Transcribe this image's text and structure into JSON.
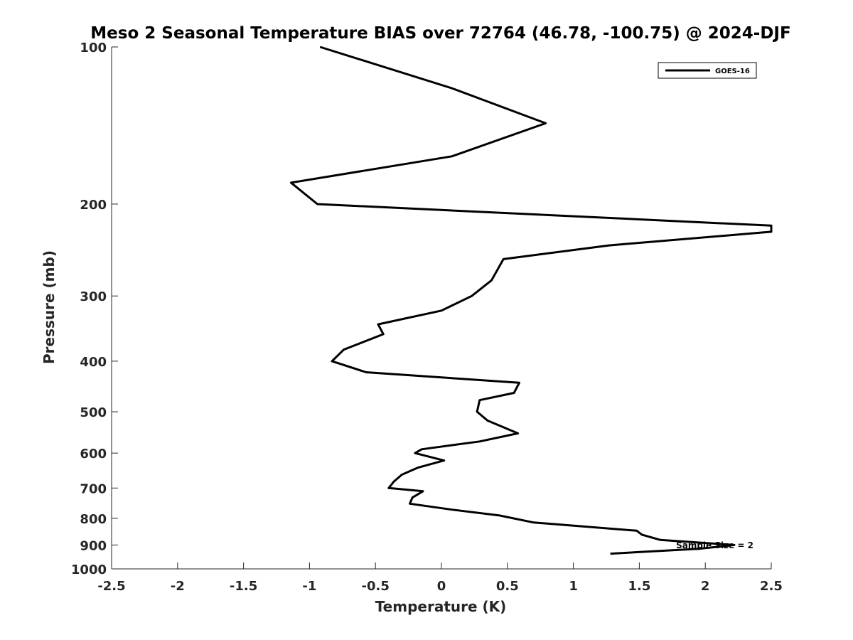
{
  "chart_data": {
    "type": "line",
    "title": "Meso 2 Seasonal Temperature BIAS over 72764 (46.78, -100.75) @ 2024-DJF",
    "xlabel": "Temperature (K)",
    "ylabel": "Pressure (mb)",
    "xlim": [
      -2.5,
      2.5
    ],
    "ylim": [
      100,
      1000
    ],
    "y_scale": "log",
    "y_reversed": true,
    "grid": false,
    "legend_position": "top-right",
    "x_ticks": [
      "-2.5",
      "-2",
      "-1.5",
      "-1",
      "-0.5",
      "0",
      "0.5",
      "1",
      "1.5",
      "2",
      "2.5"
    ],
    "y_ticks": [
      "100",
      "200",
      "300",
      "400",
      "500",
      "600",
      "700",
      "800",
      "900",
      "1000"
    ],
    "annotation": "Sample Size = 2",
    "series": [
      {
        "name": "GOES-16",
        "color": "#000000",
        "points": [
          {
            "x": -0.92,
            "y": 100
          },
          {
            "x": 0.08,
            "y": 120
          },
          {
            "x": 0.79,
            "y": 140
          },
          {
            "x": 0.08,
            "y": 162
          },
          {
            "x": -1.14,
            "y": 182
          },
          {
            "x": -0.94,
            "y": 200
          },
          {
            "x": 2.5,
            "y": 220
          },
          {
            "x": 2.5,
            "y": 226
          },
          {
            "x": 1.27,
            "y": 240
          },
          {
            "x": 0.47,
            "y": 255
          },
          {
            "x": 0.38,
            "y": 280
          },
          {
            "x": 0.23,
            "y": 300
          },
          {
            "x": 0.0,
            "y": 320
          },
          {
            "x": -0.48,
            "y": 340
          },
          {
            "x": -0.44,
            "y": 355
          },
          {
            "x": -0.74,
            "y": 380
          },
          {
            "x": -0.83,
            "y": 400
          },
          {
            "x": -0.57,
            "y": 420
          },
          {
            "x": 0.59,
            "y": 440
          },
          {
            "x": 0.55,
            "y": 460
          },
          {
            "x": 0.29,
            "y": 475
          },
          {
            "x": 0.27,
            "y": 500
          },
          {
            "x": 0.35,
            "y": 520
          },
          {
            "x": 0.58,
            "y": 550
          },
          {
            "x": 0.29,
            "y": 570
          },
          {
            "x": -0.15,
            "y": 590
          },
          {
            "x": -0.2,
            "y": 600
          },
          {
            "x": 0.02,
            "y": 620
          },
          {
            "x": -0.18,
            "y": 640
          },
          {
            "x": -0.3,
            "y": 660
          },
          {
            "x": -0.36,
            "y": 680
          },
          {
            "x": -0.4,
            "y": 700
          },
          {
            "x": -0.14,
            "y": 710
          },
          {
            "x": -0.22,
            "y": 730
          },
          {
            "x": -0.24,
            "y": 750
          },
          {
            "x": 0.08,
            "y": 770
          },
          {
            "x": 0.44,
            "y": 790
          },
          {
            "x": 0.7,
            "y": 815
          },
          {
            "x": 1.48,
            "y": 845
          },
          {
            "x": 1.52,
            "y": 860
          },
          {
            "x": 1.66,
            "y": 880
          },
          {
            "x": 2.22,
            "y": 900
          },
          {
            "x": 1.95,
            "y": 915
          },
          {
            "x": 1.28,
            "y": 935
          }
        ]
      }
    ]
  }
}
